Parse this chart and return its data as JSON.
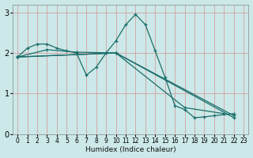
{
  "title": "",
  "xlabel": "Humidex (Indice chaleur)",
  "ylabel": "",
  "bg_color": "#cce8e8",
  "line_color": "#1a6e6a",
  "grid_color": "#d4a0a0",
  "xlim": [
    -0.5,
    23.5
  ],
  "ylim": [
    0,
    3.2
  ],
  "xticks": [
    0,
    1,
    2,
    3,
    4,
    5,
    6,
    7,
    8,
    9,
    10,
    11,
    12,
    13,
    14,
    15,
    16,
    17,
    18,
    19,
    20,
    21,
    22,
    23
  ],
  "yticks": [
    0,
    1,
    2,
    3
  ],
  "series_x": [
    [
      0,
      1,
      2,
      3,
      4,
      5,
      6,
      7,
      8,
      9,
      10,
      11,
      12,
      13,
      14,
      15,
      16,
      17,
      18,
      19,
      20,
      22
    ],
    [
      0,
      3,
      6,
      10,
      17,
      21
    ],
    [
      0,
      10,
      22
    ],
    [
      0,
      10,
      22
    ]
  ],
  "series_y": [
    [
      1.9,
      2.12,
      2.22,
      2.22,
      2.12,
      2.05,
      2.0,
      1.45,
      1.65,
      2.0,
      2.3,
      2.7,
      2.95,
      2.7,
      2.05,
      1.4,
      0.7,
      0.6,
      0.4,
      0.42,
      0.45,
      0.5
    ],
    [
      1.9,
      2.08,
      2.02,
      2.0,
      0.65,
      0.5
    ],
    [
      1.9,
      2.0,
      0.45
    ],
    [
      1.9,
      2.0,
      0.4
    ]
  ]
}
